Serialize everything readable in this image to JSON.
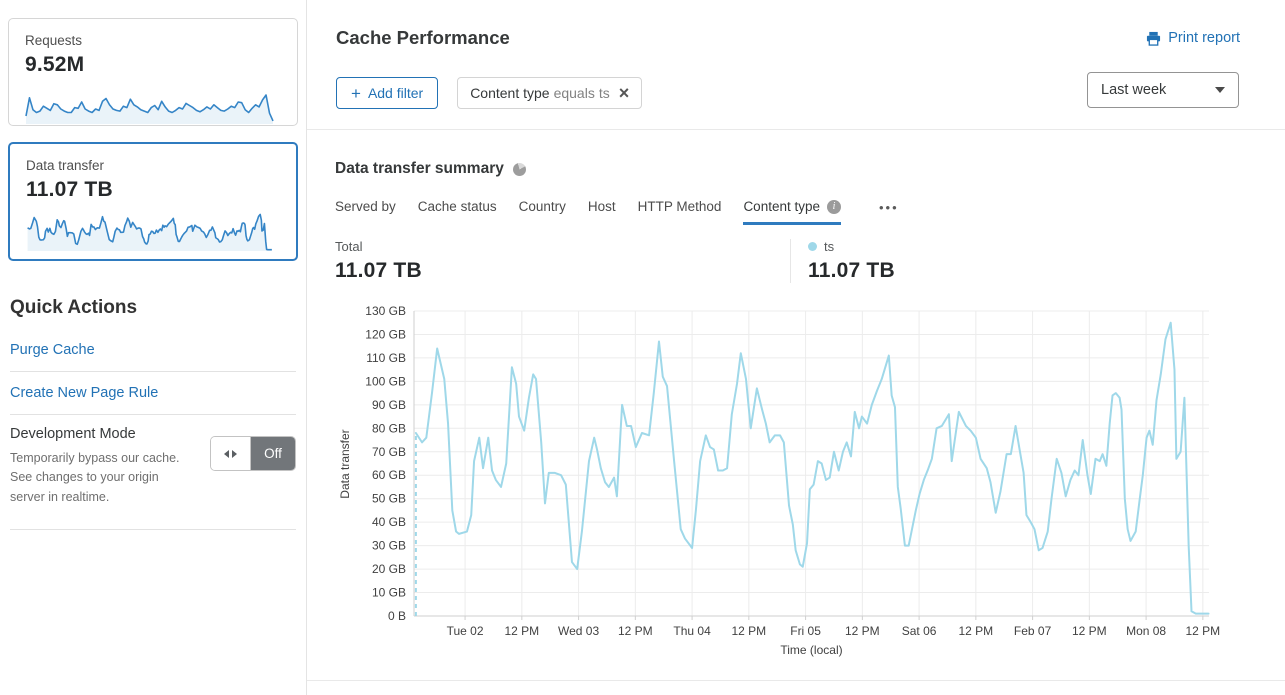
{
  "sidebar": {
    "cards": [
      {
        "label": "Requests",
        "value": "9.52M"
      },
      {
        "label": "Data transfer",
        "value": "11.07 TB"
      }
    ],
    "requests_sparkline": [
      20,
      72,
      38,
      30,
      34,
      48,
      42,
      36,
      55,
      52,
      40,
      34,
      30,
      30,
      44,
      42,
      60,
      40,
      34,
      30,
      40,
      36,
      62,
      70,
      52,
      40,
      36,
      34,
      48,
      44,
      68,
      52,
      46,
      38,
      34,
      30,
      44,
      50,
      38,
      62,
      46,
      34,
      30,
      36,
      44,
      40,
      56,
      50,
      44,
      36,
      32,
      38,
      46,
      40,
      52,
      44,
      36,
      34,
      40,
      48,
      44,
      60,
      58,
      38,
      30,
      42,
      52,
      46,
      66,
      80,
      28,
      6
    ],
    "quick_actions": {
      "title": "Quick Actions",
      "links": [
        "Purge Cache",
        "Create New Page Rule"
      ],
      "dev_mode": {
        "title": "Development Mode",
        "description": "Temporarily bypass our cache. See changes to your origin server in realtime.",
        "toggle_state": "Off"
      }
    }
  },
  "header": {
    "title": "Cache Performance",
    "print_label": "Print report"
  },
  "filters": {
    "add_plus": "+",
    "add_label": "Add filter",
    "chip": {
      "field": "Content type",
      "operator": "equals",
      "value": "ts",
      "close_glyph": "×"
    },
    "time_range": "Last week"
  },
  "summary": {
    "title": "Data transfer summary",
    "tabs": [
      {
        "label": "Served by"
      },
      {
        "label": "Cache status"
      },
      {
        "label": "Country"
      },
      {
        "label": "Host"
      },
      {
        "label": "HTTP Method"
      },
      {
        "label": "Content type",
        "active": true
      }
    ],
    "more_label": "•••",
    "total": {
      "label": "Total",
      "value": "11.07 TB"
    },
    "legend": {
      "name": "ts",
      "value": "11.07 TB",
      "color": "#9fd8e9"
    }
  },
  "colors": {
    "accent": "#2272b5",
    "active_underline": "#2f7bbf",
    "chart_line": "#9fd8e9",
    "grid": "#ececec",
    "axis": "#cfcfcf",
    "tick_text": "#414141",
    "spark_line": "#3585c7",
    "spark_fill": "rgba(53,133,199,0.10)"
  },
  "chart_data": {
    "type": "line",
    "title": "Data transfer summary",
    "xlabel": "Time (local)",
    "ylabel": "Data transfer",
    "unit": "GB",
    "ylim": [
      0,
      130
    ],
    "y_tick_labels": [
      "0 B",
      "10 GB",
      "20 GB",
      "30 GB",
      "40 GB",
      "50 GB",
      "60 GB",
      "70 GB",
      "80 GB",
      "90 GB",
      "100 GB",
      "110 GB",
      "120 GB",
      "130 GB"
    ],
    "grid": true,
    "legend_position": "top-right",
    "t_unit": "hours since Mon Feb 01 00:00",
    "t_range": [
      13.2,
      181.3
    ],
    "x_ticks": [
      {
        "t": 24,
        "label": "Tue 02"
      },
      {
        "t": 36,
        "label": "12 PM"
      },
      {
        "t": 48,
        "label": "Wed 03"
      },
      {
        "t": 60,
        "label": "12 PM"
      },
      {
        "t": 72,
        "label": "Thu 04"
      },
      {
        "t": 84,
        "label": "12 PM"
      },
      {
        "t": 96,
        "label": "Fri 05"
      },
      {
        "t": 108,
        "label": "12 PM"
      },
      {
        "t": 120,
        "label": "Sat 06"
      },
      {
        "t": 132,
        "label": "12 PM"
      },
      {
        "t": 144,
        "label": "Feb 07"
      },
      {
        "t": 156,
        "label": "12 PM"
      },
      {
        "t": 168,
        "label": "Mon 08"
      },
      {
        "t": 180,
        "label": "12 PM"
      }
    ],
    "leadin_dashed": [
      [
        13.6,
        0
      ],
      [
        13.6,
        78
      ]
    ],
    "series": [
      {
        "name": "ts",
        "color": "#9fd8e9",
        "total": "11.07 TB",
        "points": [
          [
            13.6,
            78
          ],
          [
            14.9,
            74
          ],
          [
            15.8,
            76
          ],
          [
            17,
            95
          ],
          [
            18.1,
            114
          ],
          [
            19.6,
            101
          ],
          [
            20.4,
            82
          ],
          [
            21.3,
            45
          ],
          [
            22.1,
            36
          ],
          [
            22.7,
            35
          ],
          [
            24.4,
            36
          ],
          [
            25.3,
            43
          ],
          [
            25.9,
            66
          ],
          [
            27,
            76
          ],
          [
            27.8,
            63
          ],
          [
            28.9,
            76
          ],
          [
            29.7,
            62
          ],
          [
            30.5,
            58
          ],
          [
            31.6,
            55
          ],
          [
            32.7,
            65
          ],
          [
            33.9,
            106
          ],
          [
            34.8,
            99
          ],
          [
            35.4,
            85
          ],
          [
            36.5,
            79
          ],
          [
            37.5,
            93
          ],
          [
            38.4,
            103
          ],
          [
            39,
            101
          ],
          [
            40.1,
            74
          ],
          [
            40.9,
            48
          ],
          [
            41.7,
            61
          ],
          [
            43,
            61
          ],
          [
            44.3,
            60
          ],
          [
            45.3,
            56
          ],
          [
            46.6,
            23
          ],
          [
            47.7,
            20
          ],
          [
            48.7,
            36
          ],
          [
            50.2,
            66
          ],
          [
            51.3,
            76
          ],
          [
            51.9,
            71
          ],
          [
            52.7,
            63
          ],
          [
            53.6,
            57
          ],
          [
            54.4,
            55
          ],
          [
            55.5,
            59
          ],
          [
            56.1,
            51
          ],
          [
            57.2,
            90
          ],
          [
            58.2,
            81
          ],
          [
            59.1,
            81
          ],
          [
            60.1,
            72
          ],
          [
            61.4,
            78
          ],
          [
            62.9,
            77
          ],
          [
            63.9,
            95
          ],
          [
            65,
            117
          ],
          [
            65.8,
            102
          ],
          [
            66.7,
            98
          ],
          [
            68.2,
            66
          ],
          [
            69.6,
            37
          ],
          [
            70.5,
            33
          ],
          [
            72,
            29
          ],
          [
            72.8,
            45
          ],
          [
            73.7,
            66
          ],
          [
            74.9,
            77
          ],
          [
            75.8,
            72
          ],
          [
            76.6,
            71
          ],
          [
            77.5,
            62
          ],
          [
            78.5,
            62
          ],
          [
            79.4,
            63
          ],
          [
            80.4,
            86
          ],
          [
            81.5,
            99
          ],
          [
            82.3,
            112
          ],
          [
            83.4,
            101
          ],
          [
            84.4,
            80
          ],
          [
            85.7,
            97
          ],
          [
            86.8,
            88
          ],
          [
            87.6,
            82
          ],
          [
            88.4,
            74
          ],
          [
            89.5,
            77
          ],
          [
            90.6,
            77
          ],
          [
            91.4,
            74
          ],
          [
            92.5,
            47
          ],
          [
            93.3,
            39
          ],
          [
            93.9,
            28
          ],
          [
            94.8,
            22
          ],
          [
            95.4,
            21
          ],
          [
            96.3,
            31
          ],
          [
            96.9,
            54
          ],
          [
            97.7,
            56
          ],
          [
            98.6,
            66
          ],
          [
            99.4,
            65
          ],
          [
            100.3,
            58
          ],
          [
            101.1,
            59
          ],
          [
            102,
            70
          ],
          [
            103,
            62
          ],
          [
            103.9,
            70
          ],
          [
            104.7,
            74
          ],
          [
            105.6,
            68
          ],
          [
            106.4,
            87
          ],
          [
            107.3,
            80
          ],
          [
            107.9,
            85
          ],
          [
            109,
            82
          ],
          [
            110,
            90
          ],
          [
            111.1,
            96
          ],
          [
            112.1,
            101
          ],
          [
            113.6,
            111
          ],
          [
            114.2,
            94
          ],
          [
            114.9,
            89
          ],
          [
            115.5,
            55
          ],
          [
            116.1,
            46
          ],
          [
            117,
            30
          ],
          [
            117.8,
            30
          ],
          [
            118.4,
            36
          ],
          [
            119.3,
            45
          ],
          [
            120.1,
            52
          ],
          [
            121,
            58
          ],
          [
            121.8,
            62
          ],
          [
            122.7,
            67
          ],
          [
            123.7,
            80
          ],
          [
            124.8,
            81
          ],
          [
            126.3,
            86
          ],
          [
            126.9,
            66
          ],
          [
            128.4,
            87
          ],
          [
            129.9,
            81
          ],
          [
            130.9,
            79
          ],
          [
            132,
            76
          ],
          [
            133,
            67
          ],
          [
            134.3,
            63
          ],
          [
            135.1,
            57
          ],
          [
            136.2,
            44
          ],
          [
            137.2,
            53
          ],
          [
            138.5,
            69
          ],
          [
            139.4,
            69
          ],
          [
            140.4,
            81
          ],
          [
            141.5,
            68
          ],
          [
            142.1,
            61
          ],
          [
            142.7,
            43
          ],
          [
            143.6,
            40
          ],
          [
            144.4,
            37
          ],
          [
            145.3,
            28
          ],
          [
            146.1,
            29
          ],
          [
            147.2,
            36
          ],
          [
            148,
            50
          ],
          [
            149.1,
            67
          ],
          [
            150.1,
            61
          ],
          [
            151,
            51
          ],
          [
            152,
            58
          ],
          [
            152.9,
            62
          ],
          [
            153.7,
            60
          ],
          [
            154.6,
            75
          ],
          [
            155.6,
            60
          ],
          [
            156.3,
            52
          ],
          [
            157.3,
            67
          ],
          [
            158.2,
            66
          ],
          [
            158.8,
            69
          ],
          [
            159.6,
            64
          ],
          [
            160.3,
            82
          ],
          [
            160.9,
            94
          ],
          [
            161.6,
            95
          ],
          [
            162.4,
            93
          ],
          [
            162.8,
            88
          ],
          [
            163.5,
            50
          ],
          [
            164.1,
            37
          ],
          [
            164.7,
            32
          ],
          [
            165.8,
            36
          ],
          [
            166.6,
            49
          ],
          [
            167.3,
            60
          ],
          [
            168.1,
            76
          ],
          [
            168.7,
            79
          ],
          [
            169.4,
            73
          ],
          [
            170.2,
            92
          ],
          [
            171.1,
            103
          ],
          [
            172.1,
            118
          ],
          [
            173.2,
            125
          ],
          [
            174,
            105
          ],
          [
            174.4,
            67
          ],
          [
            175.3,
            70
          ],
          [
            176.1,
            93
          ],
          [
            177,
            30
          ],
          [
            177.6,
            2
          ],
          [
            178.5,
            1
          ],
          [
            179.5,
            1
          ],
          [
            181.2,
            1
          ]
        ]
      }
    ]
  }
}
